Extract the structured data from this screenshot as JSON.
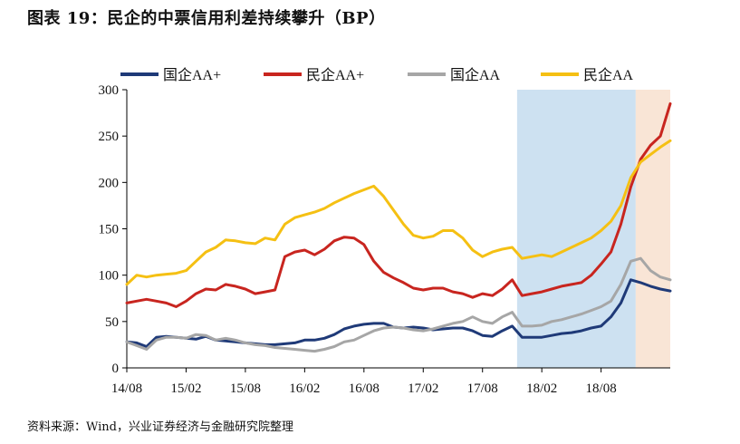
{
  "title": "图表 19：民企的中票信用利差持续攀升（BP）",
  "source": "资料来源：Wind，兴业证券经济与金融研究院整理",
  "chart_data": {
    "type": "line",
    "title": "图表 19：民企的中票信用利差持续攀升（BP）",
    "xlabel": "",
    "ylabel": "",
    "ylim": [
      0,
      300
    ],
    "yticks": [
      0,
      50,
      100,
      150,
      200,
      250,
      300
    ],
    "x_tick_labels": [
      "14/08",
      "15/02",
      "15/08",
      "16/02",
      "16/08",
      "17/02",
      "17/08",
      "18/02",
      "18/08"
    ],
    "x_unit": "months since 14/08",
    "legend_position": "top",
    "grid": false,
    "highlight_regions": [
      {
        "from": 39.5,
        "to": 51.5,
        "color": "#bcd7ec"
      },
      {
        "from": 51.5,
        "to": 55.0,
        "color": "#f7dcc8"
      }
    ],
    "series": [
      {
        "name": "国企AA+",
        "color": "#1f3a78",
        "points": [
          [
            0,
            28
          ],
          [
            1,
            27
          ],
          [
            2,
            23
          ],
          [
            3,
            33
          ],
          [
            4,
            34
          ],
          [
            5,
            33
          ],
          [
            6,
            32
          ],
          [
            7,
            31
          ],
          [
            8,
            34
          ],
          [
            9,
            30
          ],
          [
            10,
            29
          ],
          [
            11,
            28
          ],
          [
            12,
            27
          ],
          [
            13,
            26
          ],
          [
            14,
            25
          ],
          [
            15,
            25
          ],
          [
            16,
            26
          ],
          [
            17,
            27
          ],
          [
            18,
            30
          ],
          [
            19,
            30
          ],
          [
            20,
            32
          ],
          [
            21,
            36
          ],
          [
            22,
            42
          ],
          [
            23,
            45
          ],
          [
            24,
            47
          ],
          [
            25,
            48
          ],
          [
            26,
            48
          ],
          [
            27,
            44
          ],
          [
            28,
            43
          ],
          [
            29,
            44
          ],
          [
            30,
            43
          ],
          [
            31,
            41
          ],
          [
            32,
            42
          ],
          [
            33,
            43
          ],
          [
            34,
            43
          ],
          [
            35,
            40
          ],
          [
            36,
            35
          ],
          [
            37,
            34
          ],
          [
            38,
            40
          ],
          [
            39,
            45
          ],
          [
            40,
            33
          ],
          [
            41,
            33
          ],
          [
            42,
            33
          ],
          [
            43,
            35
          ],
          [
            44,
            37
          ],
          [
            45,
            38
          ],
          [
            46,
            40
          ],
          [
            47,
            43
          ],
          [
            48,
            45
          ],
          [
            49,
            55
          ],
          [
            50,
            70
          ],
          [
            51,
            95
          ],
          [
            52,
            92
          ],
          [
            53,
            88
          ],
          [
            54,
            85
          ],
          [
            55,
            83
          ]
        ]
      },
      {
        "name": "民企AA+",
        "color": "#c8251f",
        "points": [
          [
            0,
            70
          ],
          [
            1,
            72
          ],
          [
            2,
            74
          ],
          [
            3,
            72
          ],
          [
            4,
            70
          ],
          [
            5,
            66
          ],
          [
            6,
            72
          ],
          [
            7,
            80
          ],
          [
            8,
            85
          ],
          [
            9,
            84
          ],
          [
            10,
            90
          ],
          [
            11,
            88
          ],
          [
            12,
            85
          ],
          [
            13,
            80
          ],
          [
            14,
            82
          ],
          [
            15,
            84
          ],
          [
            16,
            120
          ],
          [
            17,
            125
          ],
          [
            18,
            127
          ],
          [
            19,
            122
          ],
          [
            20,
            128
          ],
          [
            21,
            137
          ],
          [
            22,
            141
          ],
          [
            23,
            140
          ],
          [
            24,
            133
          ],
          [
            25,
            115
          ],
          [
            26,
            103
          ],
          [
            27,
            97
          ],
          [
            28,
            92
          ],
          [
            29,
            86
          ],
          [
            30,
            84
          ],
          [
            31,
            86
          ],
          [
            32,
            86
          ],
          [
            33,
            82
          ],
          [
            34,
            80
          ],
          [
            35,
            76
          ],
          [
            36,
            80
          ],
          [
            37,
            78
          ],
          [
            38,
            85
          ],
          [
            39,
            95
          ],
          [
            40,
            78
          ],
          [
            41,
            80
          ],
          [
            42,
            82
          ],
          [
            43,
            85
          ],
          [
            44,
            88
          ],
          [
            45,
            90
          ],
          [
            46,
            92
          ],
          [
            47,
            100
          ],
          [
            48,
            112
          ],
          [
            49,
            125
          ],
          [
            50,
            155
          ],
          [
            51,
            195
          ],
          [
            52,
            225
          ],
          [
            53,
            240
          ],
          [
            54,
            250
          ],
          [
            55,
            285
          ]
        ]
      },
      {
        "name": "国企AA",
        "color": "#a6a6a6",
        "points": [
          [
            0,
            28
          ],
          [
            1,
            24
          ],
          [
            2,
            20
          ],
          [
            3,
            30
          ],
          [
            4,
            33
          ],
          [
            5,
            33
          ],
          [
            6,
            32
          ],
          [
            7,
            36
          ],
          [
            8,
            35
          ],
          [
            9,
            30
          ],
          [
            10,
            32
          ],
          [
            11,
            30
          ],
          [
            12,
            27
          ],
          [
            13,
            25
          ],
          [
            14,
            24
          ],
          [
            15,
            22
          ],
          [
            16,
            21
          ],
          [
            17,
            20
          ],
          [
            18,
            19
          ],
          [
            19,
            18
          ],
          [
            20,
            20
          ],
          [
            21,
            23
          ],
          [
            22,
            28
          ],
          [
            23,
            30
          ],
          [
            24,
            35
          ],
          [
            25,
            40
          ],
          [
            26,
            43
          ],
          [
            27,
            44
          ],
          [
            28,
            43
          ],
          [
            29,
            41
          ],
          [
            30,
            40
          ],
          [
            31,
            42
          ],
          [
            32,
            45
          ],
          [
            33,
            48
          ],
          [
            34,
            50
          ],
          [
            35,
            55
          ],
          [
            36,
            50
          ],
          [
            37,
            48
          ],
          [
            38,
            55
          ],
          [
            39,
            60
          ],
          [
            40,
            45
          ],
          [
            41,
            45
          ],
          [
            42,
            46
          ],
          [
            43,
            50
          ],
          [
            44,
            52
          ],
          [
            45,
            55
          ],
          [
            46,
            58
          ],
          [
            47,
            62
          ],
          [
            48,
            66
          ],
          [
            49,
            72
          ],
          [
            50,
            90
          ],
          [
            51,
            115
          ],
          [
            52,
            118
          ],
          [
            53,
            105
          ],
          [
            54,
            98
          ],
          [
            55,
            95
          ]
        ]
      },
      {
        "name": "民企AA",
        "color": "#f5c013",
        "points": [
          [
            0,
            90
          ],
          [
            1,
            100
          ],
          [
            2,
            98
          ],
          [
            3,
            100
          ],
          [
            4,
            101
          ],
          [
            5,
            102
          ],
          [
            6,
            105
          ],
          [
            7,
            115
          ],
          [
            8,
            125
          ],
          [
            9,
            130
          ],
          [
            10,
            138
          ],
          [
            11,
            137
          ],
          [
            12,
            135
          ],
          [
            13,
            134
          ],
          [
            14,
            140
          ],
          [
            15,
            138
          ],
          [
            16,
            155
          ],
          [
            17,
            162
          ],
          [
            18,
            165
          ],
          [
            19,
            168
          ],
          [
            20,
            172
          ],
          [
            21,
            178
          ],
          [
            22,
            183
          ],
          [
            23,
            188
          ],
          [
            24,
            192
          ],
          [
            25,
            196
          ],
          [
            26,
            185
          ],
          [
            27,
            170
          ],
          [
            28,
            155
          ],
          [
            29,
            143
          ],
          [
            30,
            140
          ],
          [
            31,
            142
          ],
          [
            32,
            148
          ],
          [
            33,
            148
          ],
          [
            34,
            140
          ],
          [
            35,
            127
          ],
          [
            36,
            120
          ],
          [
            37,
            125
          ],
          [
            38,
            128
          ],
          [
            39,
            130
          ],
          [
            40,
            118
          ],
          [
            41,
            120
          ],
          [
            42,
            122
          ],
          [
            43,
            120
          ],
          [
            44,
            125
          ],
          [
            45,
            130
          ],
          [
            46,
            135
          ],
          [
            47,
            140
          ],
          [
            48,
            148
          ],
          [
            49,
            158
          ],
          [
            50,
            175
          ],
          [
            51,
            205
          ],
          [
            52,
            222
          ],
          [
            53,
            230
          ],
          [
            54,
            238
          ],
          [
            55,
            245
          ]
        ]
      }
    ]
  }
}
